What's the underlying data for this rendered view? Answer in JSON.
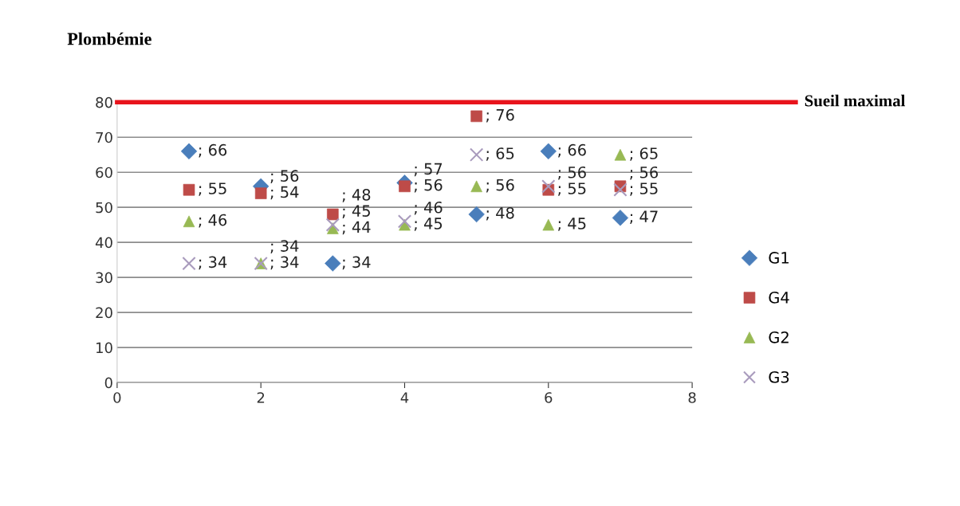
{
  "chart_data": {
    "type": "scatter",
    "title": "Plombémie",
    "x": [
      1,
      2,
      3,
      4,
      5,
      6,
      7
    ],
    "series": [
      {
        "name": "G1",
        "color": "#4a7ebb",
        "marker": "diamond",
        "values": [
          66,
          56,
          34,
          57,
          48,
          66,
          47
        ],
        "value_labels": [
          "; 66",
          "; 56",
          "; 34",
          "; 57",
          "; 48",
          "; 66",
          "; 47"
        ]
      },
      {
        "name": "G4",
        "color": "#be4b48",
        "marker": "square",
        "values": [
          55,
          54,
          48,
          56,
          76,
          55,
          56
        ],
        "value_labels": [
          "; 55",
          "; 54",
          "; 48",
          "; 56",
          "; 76",
          "; 55",
          "; 56"
        ]
      },
      {
        "name": "G2",
        "color": "#98b954",
        "marker": "triangle",
        "values": [
          46,
          34,
          44,
          45,
          56,
          45,
          65
        ],
        "value_labels": [
          "; 46",
          "; 34",
          "; 44",
          "; 45",
          "; 56",
          "; 45",
          "; 65"
        ]
      },
      {
        "name": "G3",
        "color": "#a99bbd",
        "marker": "cross",
        "values": [
          34,
          34,
          45,
          46,
          65,
          56,
          55
        ],
        "value_labels": [
          "; 34",
          "; 34",
          "; 45",
          "; 46",
          "; 65",
          "; 56",
          "; 55"
        ]
      }
    ],
    "xlim": [
      0,
      8
    ],
    "xticks": [
      0,
      2,
      4,
      6,
      8
    ],
    "ylim": [
      0,
      80
    ],
    "yticks": [
      0,
      10,
      20,
      30,
      40,
      50,
      60,
      70,
      80
    ],
    "grid": "y",
    "legend": "right",
    "ref_lines": [
      {
        "axis": "y",
        "value": 80,
        "label": "Sueil maximal",
        "color": "#e8141c"
      }
    ]
  }
}
